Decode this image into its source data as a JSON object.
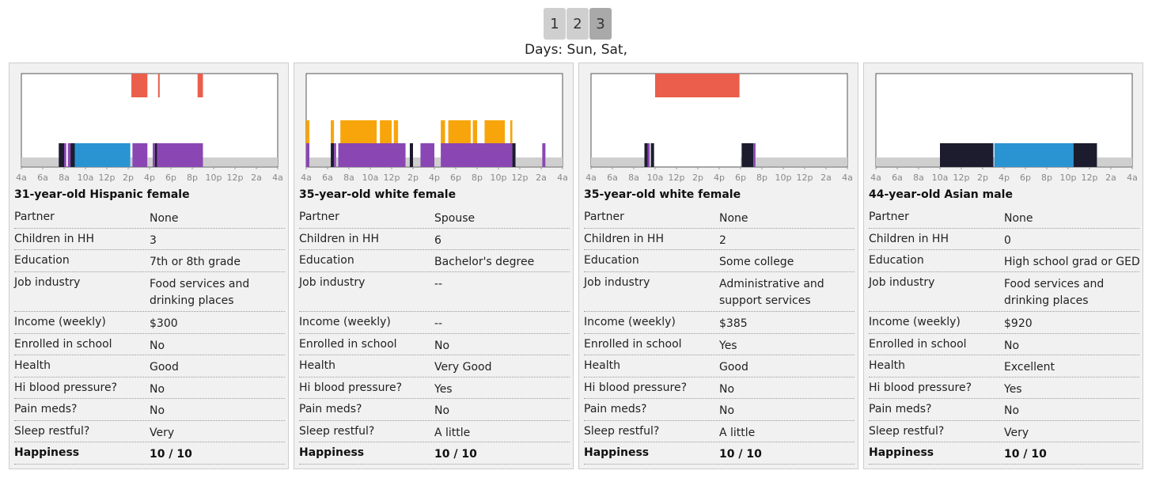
{
  "pagination": {
    "pages": [
      "1",
      "2",
      "3"
    ],
    "active": "3"
  },
  "days_label": "Days: Sun, Sat,",
  "axis_ticks": [
    "4a",
    "6a",
    "8a",
    "10a",
    "12p",
    "2p",
    "4p",
    "6p",
    "8p",
    "10p",
    "12p",
    "2a",
    "4a"
  ],
  "field_labels": {
    "partner": "Partner",
    "children": "Children in HH",
    "education": "Education",
    "job": "Job industry",
    "income": "Income (weekly)",
    "school": "Enrolled in school",
    "health": "Health",
    "bp": "Hi blood pressure?",
    "pain": "Pain meds?",
    "sleep": "Sleep restful?",
    "happiness": "Happiness"
  },
  "colors": {
    "sleep_gray": "#cfcfcf",
    "dark": "#1c1c2e",
    "blue": "#2a94d2",
    "purple": "#8a47b3",
    "orange": "#f7a50a",
    "red": "#ea5e4b",
    "chart_border": "#555555"
  },
  "people": [
    {
      "title": "31-year-old Hispanic female",
      "partner": "None",
      "children": "3",
      "education": "7th or 8th grade",
      "job": "Food services and drinking places",
      "income": "$300",
      "school": "No",
      "health": "Good",
      "bp": "No",
      "pain": "No",
      "sleep": "Very",
      "happiness": "10 / 10"
    },
    {
      "title": "35-year-old white female",
      "partner": "Spouse",
      "children": "6",
      "education": "Bachelor's degree",
      "job": "--",
      "income": "--",
      "school": "No",
      "health": "Very Good",
      "bp": "Yes",
      "pain": "No",
      "sleep": "A little",
      "happiness": "10 / 10"
    },
    {
      "title": "35-year-old white female",
      "partner": "None",
      "children": "2",
      "education": "Some college",
      "job": "Administrative and support services",
      "income": "$385",
      "school": "Yes",
      "health": "Good",
      "bp": "No",
      "pain": "No",
      "sleep": "A little",
      "happiness": "10 / 10"
    },
    {
      "title": "44-year-old Asian male",
      "partner": "None",
      "children": "0",
      "education": "High school grad or GED",
      "job": "Food services and drinking places",
      "income": "$920",
      "school": "No",
      "health": "Excellent",
      "bp": "Yes",
      "pain": "No",
      "sleep": "Very",
      "happiness": "10 / 10"
    }
  ],
  "chart_data": [
    {
      "type": "timeline",
      "x_unit": "hours since 4am",
      "xlim": [
        0,
        24
      ],
      "segments": [
        {
          "row": "base",
          "color": "sleep_gray",
          "start": 0,
          "end": 3.5
        },
        {
          "row": "base",
          "color": "dark",
          "start": 3.5,
          "end": 4.0
        },
        {
          "row": "base",
          "color": "purple",
          "start": 4.0,
          "end": 4.2
        },
        {
          "row": "base",
          "color": "purple",
          "start": 4.35,
          "end": 4.6
        },
        {
          "row": "base",
          "color": "dark",
          "start": 4.6,
          "end": 5.0
        },
        {
          "row": "base",
          "color": "blue",
          "start": 5.0,
          "end": 10.2
        },
        {
          "row": "base",
          "color": "sleep_gray",
          "start": 10.2,
          "end": 10.4
        },
        {
          "row": "base",
          "color": "purple",
          "start": 10.4,
          "end": 11.8
        },
        {
          "row": "base",
          "color": "sleep_gray",
          "start": 11.8,
          "end": 12.3
        },
        {
          "row": "base",
          "color": "purple",
          "start": 12.3,
          "end": 12.5
        },
        {
          "row": "base",
          "color": "dark",
          "start": 12.5,
          "end": 12.7
        },
        {
          "row": "base",
          "color": "purple",
          "start": 12.7,
          "end": 17.0
        },
        {
          "row": "base",
          "color": "sleep_gray",
          "start": 17.0,
          "end": 24
        },
        {
          "row": "top",
          "color": "red",
          "start": 10.3,
          "end": 11.8
        },
        {
          "row": "top",
          "color": "red",
          "start": 12.8,
          "end": 12.95
        },
        {
          "row": "top",
          "color": "red",
          "start": 16.5,
          "end": 17.0
        }
      ]
    },
    {
      "type": "timeline",
      "x_unit": "hours since 4am",
      "xlim": [
        0,
        24
      ],
      "segments": [
        {
          "row": "base",
          "color": "purple",
          "start": 0,
          "end": 0.3
        },
        {
          "row": "base",
          "color": "sleep_gray",
          "start": 0.3,
          "end": 2.3
        },
        {
          "row": "base",
          "color": "dark",
          "start": 2.3,
          "end": 2.6
        },
        {
          "row": "base",
          "color": "purple",
          "start": 2.6,
          "end": 2.8
        },
        {
          "row": "base",
          "color": "sleep_gray",
          "start": 2.8,
          "end": 3.0
        },
        {
          "row": "base",
          "color": "purple",
          "start": 3.0,
          "end": 9.3
        },
        {
          "row": "base",
          "color": "sleep_gray",
          "start": 9.3,
          "end": 9.7
        },
        {
          "row": "base",
          "color": "dark",
          "start": 9.7,
          "end": 10.0
        },
        {
          "row": "base",
          "color": "sleep_gray",
          "start": 10.0,
          "end": 10.7
        },
        {
          "row": "base",
          "color": "purple",
          "start": 10.7,
          "end": 12.0
        },
        {
          "row": "base",
          "color": "sleep_gray",
          "start": 12.0,
          "end": 12.6
        },
        {
          "row": "base",
          "color": "purple",
          "start": 12.6,
          "end": 19.3
        },
        {
          "row": "base",
          "color": "dark",
          "start": 19.3,
          "end": 19.6
        },
        {
          "row": "base",
          "color": "sleep_gray",
          "start": 19.6,
          "end": 22.1
        },
        {
          "row": "base",
          "color": "purple",
          "start": 22.1,
          "end": 22.4
        },
        {
          "row": "base",
          "color": "sleep_gray",
          "start": 22.4,
          "end": 24
        },
        {
          "row": "mid",
          "color": "orange",
          "start": 0,
          "end": 0.3
        },
        {
          "row": "mid",
          "color": "orange",
          "start": 2.3,
          "end": 2.6
        },
        {
          "row": "mid",
          "color": "orange",
          "start": 3.2,
          "end": 6.6
        },
        {
          "row": "mid",
          "color": "orange",
          "start": 6.9,
          "end": 8.0
        },
        {
          "row": "mid",
          "color": "orange",
          "start": 8.2,
          "end": 8.6
        },
        {
          "row": "mid",
          "color": "orange",
          "start": 12.6,
          "end": 13.0
        },
        {
          "row": "mid",
          "color": "orange",
          "start": 13.3,
          "end": 15.4
        },
        {
          "row": "mid",
          "color": "orange",
          "start": 15.6,
          "end": 16.0
        },
        {
          "row": "mid",
          "color": "orange",
          "start": 16.7,
          "end": 18.6
        },
        {
          "row": "mid",
          "color": "orange",
          "start": 19.1,
          "end": 19.3
        }
      ]
    },
    {
      "type": "timeline",
      "x_unit": "hours since 4am",
      "xlim": [
        0,
        24
      ],
      "segments": [
        {
          "row": "base",
          "color": "sleep_gray",
          "start": 0,
          "end": 5.0
        },
        {
          "row": "base",
          "color": "dark",
          "start": 5.0,
          "end": 5.3
        },
        {
          "row": "base",
          "color": "purple",
          "start": 5.3,
          "end": 5.5
        },
        {
          "row": "base",
          "color": "dark",
          "start": 5.6,
          "end": 5.9
        },
        {
          "row": "base",
          "color": "sleep_gray",
          "start": 14.0,
          "end": 14.1
        },
        {
          "row": "base",
          "color": "dark",
          "start": 14.1,
          "end": 15.2
        },
        {
          "row": "base",
          "color": "purple",
          "start": 15.2,
          "end": 15.4
        },
        {
          "row": "base",
          "color": "sleep_gray",
          "start": 15.4,
          "end": 24
        },
        {
          "row": "top",
          "color": "red",
          "start": 6.0,
          "end": 13.9
        }
      ]
    },
    {
      "type": "timeline",
      "x_unit": "hours since 4am",
      "xlim": [
        0,
        24
      ],
      "segments": [
        {
          "row": "base",
          "color": "sleep_gray",
          "start": 0,
          "end": 6.0
        },
        {
          "row": "base",
          "color": "dark",
          "start": 6.0,
          "end": 11.0
        },
        {
          "row": "base",
          "color": "sleep_gray",
          "start": 11.0,
          "end": 11.1
        },
        {
          "row": "base",
          "color": "blue",
          "start": 11.1,
          "end": 18.5
        },
        {
          "row": "base",
          "color": "dark",
          "start": 18.5,
          "end": 20.7
        },
        {
          "row": "base",
          "color": "sleep_gray",
          "start": 20.7,
          "end": 24
        }
      ]
    }
  ]
}
